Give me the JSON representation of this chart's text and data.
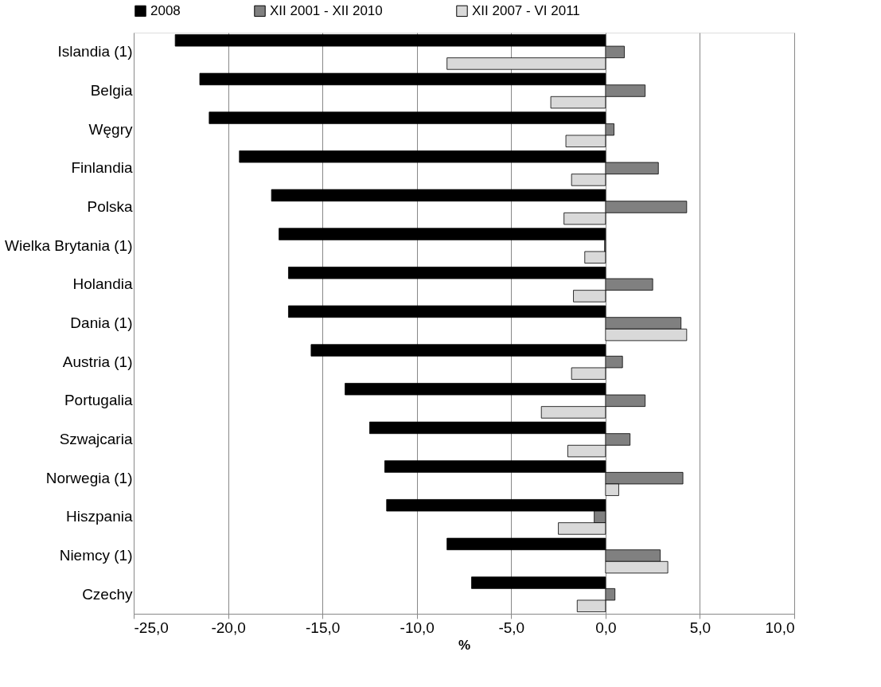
{
  "chart_data": {
    "type": "bar",
    "orientation": "horizontal",
    "xlabel": "%",
    "categories": [
      "Islandia (1)",
      "Belgia",
      "Węgry",
      "Finlandia",
      "Polska",
      "Wielka Brytania (1)",
      "Holandia",
      "Dania (1)",
      "Austria (1)",
      "Portugalia",
      "Szwajcaria",
      "Norwegia (1)",
      "Hiszpania",
      "Niemcy (1)",
      "Czechy"
    ],
    "series": [
      {
        "name": "2008",
        "color": "#000000",
        "values": [
          -22.8,
          -21.5,
          -21.0,
          -19.4,
          -17.7,
          -17.3,
          -16.8,
          -16.8,
          -15.6,
          -13.8,
          -12.5,
          -11.7,
          -11.6,
          -8.4,
          -7.1
        ]
      },
      {
        "name": "XII 2001 - XII 2010",
        "color": "#808080",
        "values": [
          1.0,
          2.1,
          0.45,
          2.8,
          4.3,
          -0.05,
          2.5,
          4.0,
          0.9,
          2.1,
          1.3,
          4.1,
          -0.6,
          2.9,
          0.5
        ]
      },
      {
        "name": "XII 2007 - VI 2011",
        "color": "#d9d9d9",
        "values": [
          -8.4,
          -2.9,
          -2.1,
          -1.8,
          -2.2,
          -1.1,
          -1.7,
          4.3,
          -1.8,
          -3.4,
          -2.0,
          0.7,
          -2.5,
          3.3,
          -1.5
        ]
      }
    ],
    "xlim": [
      -25,
      10
    ],
    "xticks": [
      {
        "value": -25,
        "label": "-25,0"
      },
      {
        "value": -20,
        "label": "-20,0"
      },
      {
        "value": -15,
        "label": "-15,0"
      },
      {
        "value": -10,
        "label": "-10,0"
      },
      {
        "value": -5,
        "label": "-5,0"
      },
      {
        "value": 0,
        "label": "0,0"
      },
      {
        "value": 5,
        "label": "5,0"
      },
      {
        "value": 10,
        "label": "10,0"
      }
    ],
    "grid": "x",
    "legend": "top"
  }
}
